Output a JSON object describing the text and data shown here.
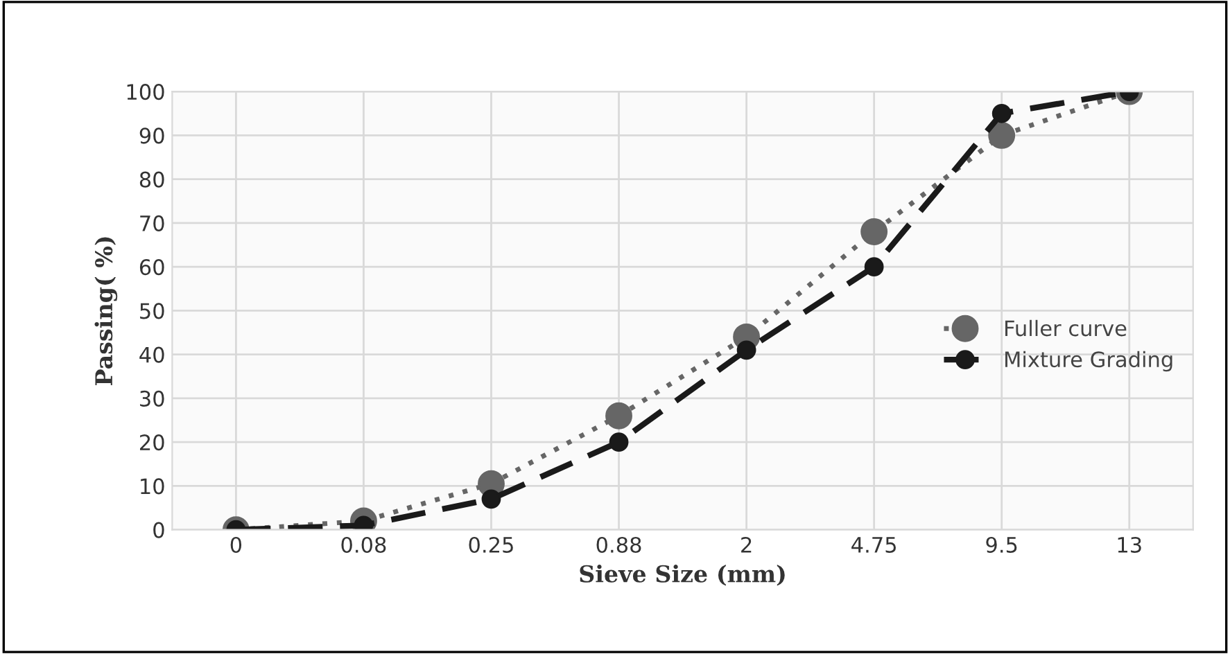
{
  "chart_data": {
    "type": "line",
    "xlabel": "Sieve Size (mm)",
    "ylabel": "Passing( %)",
    "categories": [
      "0",
      "0.08",
      "0.25",
      "0.88",
      "2",
      "4.75",
      "9.5",
      "13"
    ],
    "series": [
      {
        "name": "Fuller curve",
        "color": "#666666",
        "values": [
          0,
          2,
          10.5,
          26,
          44,
          68,
          90,
          100
        ],
        "line_style": "dotted"
      },
      {
        "name": "Mixture Grading",
        "color": "#1a1a1a",
        "values": [
          0,
          1,
          7,
          20,
          41,
          60,
          95,
          100
        ],
        "line_style": "dashed"
      }
    ],
    "ylim": [
      0,
      100
    ],
    "yticks": [
      0,
      10,
      20,
      30,
      40,
      50,
      60,
      70,
      80,
      90,
      100
    ],
    "grid": true,
    "legend": "right",
    "marker": "circle"
  }
}
